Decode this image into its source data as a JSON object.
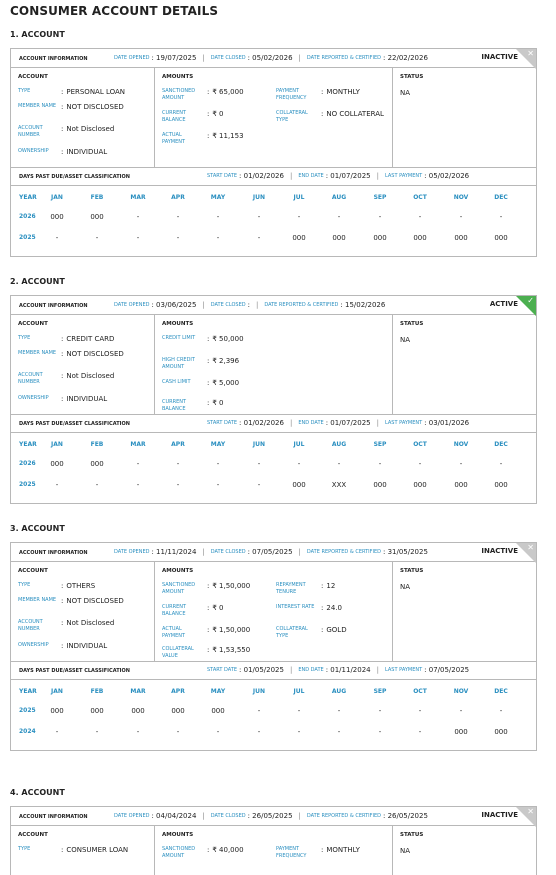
{
  "page_title": "CONSUMER ACCOUNT DETAILS",
  "labels": {
    "account_information": "ACCOUNT INFORMATION",
    "date_opened": "DATE OPENED",
    "date_closed": "DATE CLOSED",
    "date_reported": "DATE REPORTED & CERTIFIED",
    "account_col": "ACCOUNT",
    "amounts_col": "AMOUNTS",
    "status_col": "STATUS",
    "dpd_title": "DAYS PAST DUE/ASSET CLASSIFICATION",
    "start_date": "START DATE",
    "end_date": "END DATE",
    "last_payment": "LAST PAYMENT",
    "colon": ":",
    "sep": "|",
    "year": "YEAR",
    "months": [
      "JAN",
      "FEB",
      "MAR",
      "APR",
      "MAY",
      "JUN",
      "JUL",
      "AUG",
      "SEP",
      "OCT",
      "NOV",
      "DEC"
    ]
  },
  "colors": {
    "accent": "#2a8fc0",
    "inactive_corner": "#c9c9c9",
    "active_corner": "#4caf50"
  },
  "accounts": [
    {
      "heading": "1. ACCOUNT",
      "date_opened": "19/07/2025",
      "date_closed": "05/02/2026",
      "date_reported": "22/02/2026",
      "status_flag": "INACTIVE",
      "corner_mark": "✕",
      "left": [
        {
          "k": "TYPE",
          "v": "PERSONAL LOAN"
        },
        {
          "k": "MEMBER NAME",
          "v": "NOT DISCLOSED"
        },
        {
          "k": "ACCOUNT NUMBER",
          "v": "Not Disclosed"
        },
        {
          "k": "OWNERSHIP",
          "v": "INDIVIDUAL"
        }
      ],
      "mid_a": [
        {
          "k": "SANCTIONED AMOUNT",
          "v": "₹ 65,000"
        },
        {
          "k": "CURRENT BALANCE",
          "v": "₹ 0"
        },
        {
          "k": "ACTUAL PAYMENT",
          "v": "₹ 11,153"
        }
      ],
      "mid_b": [
        {
          "k": "PAYMENT FREQUENCY",
          "v": "MONTHLY"
        },
        {
          "k": "COLLATERAL TYPE",
          "v": "NO COLLATERAL"
        }
      ],
      "status": "NA",
      "start": "01/02/2026",
      "end": "01/07/2025",
      "last_payment": "05/02/2026",
      "rows": [
        {
          "year": "2026",
          "vals": [
            "000",
            "000",
            "-",
            "-",
            "-",
            "-",
            "-",
            "-",
            "-",
            "-",
            "-",
            "-"
          ]
        },
        {
          "year": "2025",
          "vals": [
            "-",
            "-",
            "-",
            "-",
            "-",
            "-",
            "000",
            "000",
            "000",
            "000",
            "000",
            "000"
          ]
        }
      ]
    },
    {
      "heading": "2. ACCOUNT",
      "date_opened": "03/06/2025",
      "date_closed": "",
      "date_reported": "15/02/2026",
      "status_flag": "ACTIVE",
      "corner_mark": "✓",
      "left": [
        {
          "k": "TYPE",
          "v": "CREDIT CARD"
        },
        {
          "k": "MEMBER NAME",
          "v": "NOT DISCLOSED"
        },
        {
          "k": "ACCOUNT NUMBER",
          "v": "Not Disclosed"
        },
        {
          "k": "OWNERSHIP",
          "v": "INDIVIDUAL"
        }
      ],
      "mid_a": [
        {
          "k": "CREDIT LIMIT",
          "v": "₹ 50,000"
        },
        {
          "k": "HIGH CREDIT AMOUNT",
          "v": "₹ 2,396"
        },
        {
          "k": "CASH LIMIT",
          "v": "₹ 5,000"
        },
        {
          "k": "CURRENT BALANCE",
          "v": "₹ 0"
        }
      ],
      "mid_b": [],
      "status": "NA",
      "start": "01/02/2026",
      "end": "01/07/2025",
      "last_payment": "03/01/2026",
      "rows": [
        {
          "year": "2026",
          "vals": [
            "000",
            "000",
            "-",
            "-",
            "-",
            "-",
            "-",
            "-",
            "-",
            "-",
            "-",
            "-"
          ]
        },
        {
          "year": "2025",
          "vals": [
            "-",
            "-",
            "-",
            "-",
            "-",
            "-",
            "000",
            "XXX",
            "000",
            "000",
            "000",
            "000"
          ]
        }
      ]
    },
    {
      "heading": "3. ACCOUNT",
      "date_opened": "11/11/2024",
      "date_closed": "07/05/2025",
      "date_reported": "31/05/2025",
      "status_flag": "INACTIVE",
      "corner_mark": "✕",
      "left": [
        {
          "k": "TYPE",
          "v": "OTHERS"
        },
        {
          "k": "MEMBER NAME",
          "v": "NOT DISCLOSED"
        },
        {
          "k": "ACCOUNT NUMBER",
          "v": "Not Disclosed"
        },
        {
          "k": "OWNERSHIP",
          "v": "INDIVIDUAL"
        }
      ],
      "mid_a": [
        {
          "k": "SANCTIONED AMOUNT",
          "v": "₹ 1,50,000"
        },
        {
          "k": "CURRENT BALANCE",
          "v": "₹ 0"
        },
        {
          "k": "ACTUAL PAYMENT",
          "v": "₹ 1,50,000"
        },
        {
          "k": "COLLATERAL VALUE",
          "v": "₹ 1,53,550"
        }
      ],
      "mid_b": [
        {
          "k": "REPAYMENT TENURE",
          "v": "12"
        },
        {
          "k": "INTEREST RATE",
          "v": "24.0"
        },
        {
          "k": "COLLATERAL TYPE",
          "v": "GOLD"
        }
      ],
      "status": "NA",
      "start": "01/05/2025",
      "end": "01/11/2024",
      "last_payment": "07/05/2025",
      "rows": [
        {
          "year": "2025",
          "vals": [
            "000",
            "000",
            "000",
            "000",
            "000",
            "-",
            "-",
            "-",
            "-",
            "-",
            "-",
            "-"
          ]
        },
        {
          "year": "2024",
          "vals": [
            "-",
            "-",
            "-",
            "-",
            "-",
            "-",
            "-",
            "-",
            "-",
            "-",
            "000",
            "000"
          ]
        }
      ]
    },
    {
      "heading": "4. ACCOUNT",
      "date_opened": "04/04/2024",
      "date_closed": "26/05/2025",
      "date_reported": "26/05/2025",
      "status_flag": "INACTIVE",
      "corner_mark": "✕",
      "left": [
        {
          "k": "TYPE",
          "v": "CONSUMER LOAN"
        }
      ],
      "mid_a": [
        {
          "k": "SANCTIONED AMOUNT",
          "v": "₹ 40,000"
        }
      ],
      "mid_b": [
        {
          "k": "PAYMENT FREQUENCY",
          "v": "MONTHLY"
        }
      ],
      "status": "NA",
      "start": "",
      "end": "",
      "last_payment": "",
      "rows": [],
      "partial": true
    }
  ]
}
